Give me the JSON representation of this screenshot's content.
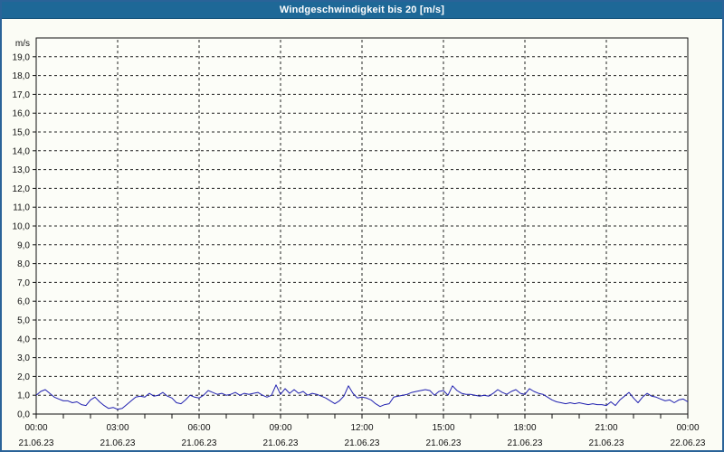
{
  "window": {
    "title": "Windgeschwindigkeit bis 20 [m/s]",
    "title_bar_color": "#1e6897",
    "border_color": "#2a6398",
    "background_color": "#fbfcf5"
  },
  "chart_data": {
    "type": "line",
    "title": "Windgeschwindigkeit bis 20 [m/s]",
    "ylabel": "m/s",
    "xlabel": "",
    "ylim": [
      0,
      20
    ],
    "x_range_hours": [
      0,
      24
    ],
    "grid": "dashed",
    "legend": "none",
    "axis_color": "#111111",
    "grid_color": "#222222",
    "line_color": "#2020b0",
    "plot_background": "#fcfdf8",
    "y_tick_values": [
      0,
      1,
      2,
      3,
      4,
      5,
      6,
      7,
      8,
      9,
      10,
      11,
      12,
      13,
      14,
      15,
      16,
      17,
      18,
      19
    ],
    "y_tick_labels": [
      "0,0",
      "1,0",
      "2,0",
      "3,0",
      "4,0",
      "5,0",
      "6,0",
      "7,0",
      "8,0",
      "9,0",
      "10,0",
      "11,0",
      "12,0",
      "13,0",
      "14,0",
      "15,0",
      "16,0",
      "17,0",
      "18,0",
      "19,0"
    ],
    "vertical_grid_hours": [
      3,
      6,
      9,
      12,
      15,
      18,
      21
    ],
    "minor_x_tick_step_hours": 1,
    "x_ticks": [
      {
        "hour": 0,
        "time": "00:00",
        "date": "21.06.23"
      },
      {
        "hour": 3,
        "time": "03:00",
        "date": "21.06.23"
      },
      {
        "hour": 6,
        "time": "06:00",
        "date": "21.06.23"
      },
      {
        "hour": 9,
        "time": "09:00",
        "date": "21.06.23"
      },
      {
        "hour": 12,
        "time": "12:00",
        "date": "21.06.23"
      },
      {
        "hour": 15,
        "time": "15:00",
        "date": "21.06.23"
      },
      {
        "hour": 18,
        "time": "18:00",
        "date": "21.06.23"
      },
      {
        "hour": 21,
        "time": "21:00",
        "date": "21.06.23"
      },
      {
        "hour": 24,
        "time": "00:00",
        "date": "22.06.23"
      }
    ],
    "series": [
      {
        "name": "Windgeschwindigkeit",
        "unit": "m/s",
        "start_hour": 0,
        "sample_interval_minutes": 10,
        "values": [
          1.0,
          1.2,
          1.3,
          1.1,
          0.9,
          0.8,
          0.7,
          0.7,
          0.6,
          0.65,
          0.5,
          0.45,
          0.75,
          0.9,
          0.65,
          0.45,
          0.3,
          0.35,
          0.25,
          0.3,
          0.5,
          0.7,
          0.9,
          0.95,
          0.9,
          1.1,
          0.95,
          1.0,
          1.15,
          0.95,
          0.85,
          0.6,
          0.55,
          0.75,
          1.0,
          0.9,
          0.85,
          1.0,
          1.25,
          1.15,
          1.05,
          1.1,
          1.0,
          1.05,
          1.15,
          1.0,
          1.1,
          1.05,
          1.1,
          1.15,
          1.0,
          0.9,
          1.0,
          1.55,
          1.05,
          1.35,
          1.1,
          1.3,
          1.1,
          1.2,
          1.0,
          1.1,
          1.05,
          0.95,
          0.85,
          0.7,
          0.55,
          0.7,
          0.95,
          1.5,
          1.1,
          0.85,
          0.9,
          0.85,
          0.75,
          0.55,
          0.4,
          0.5,
          0.55,
          0.9,
          0.95,
          1.0,
          1.05,
          1.15,
          1.2,
          1.25,
          1.3,
          1.25,
          1.0,
          1.2,
          1.25,
          1.0,
          1.5,
          1.25,
          1.1,
          1.05,
          1.05,
          1.0,
          0.95,
          1.0,
          0.95,
          1.1,
          1.3,
          1.15,
          1.05,
          1.2,
          1.3,
          1.1,
          1.05,
          1.35,
          1.2,
          1.1,
          1.05,
          0.9,
          0.75,
          0.65,
          0.6,
          0.55,
          0.6,
          0.55,
          0.6,
          0.55,
          0.5,
          0.55,
          0.5,
          0.5,
          0.45,
          0.65,
          0.45,
          0.75,
          0.95,
          1.15,
          0.85,
          0.6,
          0.9,
          1.1,
          0.95,
          0.9,
          0.8,
          0.7,
          0.75,
          0.6,
          0.75,
          0.8,
          0.65
        ]
      }
    ]
  }
}
